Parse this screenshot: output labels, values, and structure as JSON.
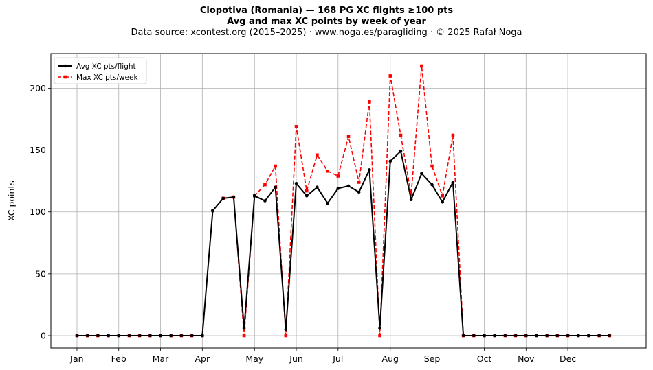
{
  "titles": {
    "line1": "Clopotiva (Romania)  —  168 PG XC flights ≥100 pts",
    "line2": "Avg and max XC points by week of year",
    "line3": "Data source: xcontest.org (2015–2025)  ·  www.noga.es/paragliding  ·  © 2025 Rafał Noga"
  },
  "chart_data": {
    "type": "line",
    "title": "Clopotiva (Romania)  —  168 PG XC flights ≥100 pts",
    "subtitle": "Avg and max XC points by week of year",
    "xlabel": "",
    "ylabel": "XC points",
    "x_tick_weeks": [
      1,
      5,
      9,
      13,
      18,
      22,
      26,
      31,
      35,
      40,
      44,
      48
    ],
    "x_tick_labels": [
      "Jan",
      "Feb",
      "Mar",
      "Apr",
      "May",
      "Jun",
      "Jul",
      "Aug",
      "Sep",
      "Oct",
      "Nov",
      "Dec"
    ],
    "xlim": [
      -1.5,
      55.5
    ],
    "ylim": [
      -10,
      228
    ],
    "y_ticks": [
      0,
      50,
      100,
      150,
      200
    ],
    "grid": true,
    "legend_position": "top-left",
    "x": [
      1,
      2,
      3,
      4,
      5,
      6,
      7,
      8,
      9,
      10,
      11,
      12,
      13,
      14,
      15,
      16,
      17,
      18,
      19,
      20,
      21,
      22,
      23,
      24,
      25,
      26,
      27,
      28,
      29,
      30,
      31,
      32,
      33,
      34,
      35,
      36,
      37,
      38,
      39,
      40,
      41,
      42,
      43,
      44,
      45,
      46,
      47,
      48,
      49,
      50,
      51,
      52
    ],
    "series": [
      {
        "name": "Avg XC pts/flight",
        "color": "#000000",
        "style": "solid",
        "marker": "circle",
        "values": [
          0,
          0,
          0,
          0,
          0,
          0,
          0,
          0,
          0,
          0,
          0,
          0,
          0,
          101,
          111,
          112,
          6,
          113,
          109,
          120,
          5,
          123,
          113,
          120,
          107,
          119,
          121,
          116,
          134,
          6,
          141,
          149,
          110,
          131,
          122,
          108,
          124,
          0,
          0,
          0,
          0,
          0,
          0,
          0,
          0,
          0,
          0,
          0,
          0,
          0,
          0,
          0
        ]
      },
      {
        "name": "Max XC pts/week",
        "color": "#ff0000",
        "style": "dashed",
        "marker": "square",
        "values": [
          0,
          0,
          0,
          0,
          0,
          0,
          0,
          0,
          0,
          0,
          0,
          0,
          0,
          101,
          111,
          112,
          0,
          113,
          122,
          137,
          0,
          169,
          117,
          146,
          133,
          129,
          161,
          124,
          189,
          0,
          210,
          162,
          114,
          218,
          137,
          113,
          162,
          0,
          0,
          0,
          0,
          0,
          0,
          0,
          0,
          0,
          0,
          0,
          0,
          0,
          0,
          0
        ]
      }
    ]
  }
}
